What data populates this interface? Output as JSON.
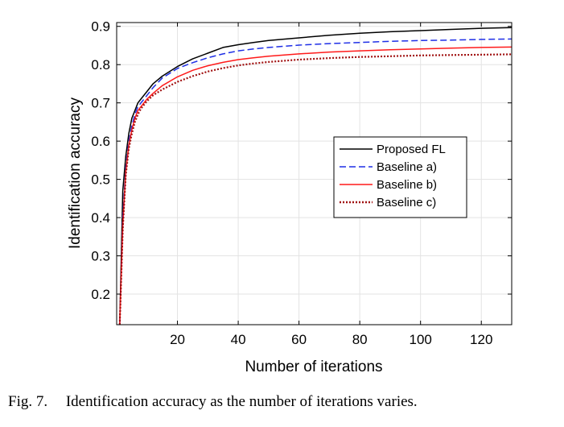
{
  "caption": {
    "label": "Fig. 7.",
    "text": "Identification accuracy as the number of iterations varies."
  },
  "chart_data": {
    "type": "line",
    "xlabel": "Number of iterations",
    "ylabel": "Identification accuracy",
    "xlim": [
      0,
      130
    ],
    "ylim": [
      0.12,
      0.91
    ],
    "xticks": [
      20,
      40,
      60,
      80,
      100,
      120
    ],
    "yticks": [
      0.2,
      0.3,
      0.4,
      0.5,
      0.6,
      0.7,
      0.8,
      0.9
    ],
    "grid": true,
    "legend_position": "center-right",
    "series": [
      {
        "name": "Proposed FL",
        "color": "#000000",
        "style": "solid",
        "x": [
          1,
          2,
          3,
          4,
          5,
          6,
          7,
          8,
          10,
          12,
          15,
          20,
          25,
          30,
          35,
          40,
          45,
          50,
          60,
          70,
          80,
          90,
          100,
          110,
          120,
          130
        ],
        "y": [
          0.12,
          0.47,
          0.56,
          0.62,
          0.66,
          0.68,
          0.7,
          0.71,
          0.73,
          0.75,
          0.77,
          0.795,
          0.815,
          0.83,
          0.845,
          0.852,
          0.858,
          0.863,
          0.87,
          0.877,
          0.882,
          0.886,
          0.889,
          0.892,
          0.895,
          0.897
        ]
      },
      {
        "name": "Baseline a)",
        "color": "#1f2fe6",
        "style": "dashed",
        "x": [
          1,
          2,
          3,
          4,
          5,
          6,
          7,
          8,
          10,
          12,
          15,
          20,
          25,
          30,
          35,
          40,
          45,
          50,
          60,
          70,
          80,
          90,
          100,
          110,
          120,
          130
        ],
        "y": [
          0.12,
          0.4,
          0.53,
          0.6,
          0.64,
          0.67,
          0.69,
          0.7,
          0.72,
          0.74,
          0.765,
          0.79,
          0.805,
          0.818,
          0.828,
          0.836,
          0.841,
          0.845,
          0.851,
          0.855,
          0.858,
          0.861,
          0.863,
          0.864,
          0.866,
          0.867
        ]
      },
      {
        "name": "Baseline b)",
        "color": "#ff1a1a",
        "style": "solid",
        "x": [
          1,
          2,
          3,
          4,
          5,
          6,
          7,
          8,
          10,
          12,
          15,
          20,
          25,
          30,
          35,
          40,
          45,
          50,
          60,
          70,
          80,
          90,
          100,
          110,
          120,
          130
        ],
        "y": [
          0.12,
          0.38,
          0.52,
          0.59,
          0.63,
          0.66,
          0.68,
          0.69,
          0.71,
          0.725,
          0.745,
          0.768,
          0.785,
          0.797,
          0.806,
          0.813,
          0.818,
          0.822,
          0.828,
          0.833,
          0.836,
          0.839,
          0.841,
          0.843,
          0.845,
          0.846
        ]
      },
      {
        "name": "Baseline c)",
        "color": "#a01010",
        "style": "dotted",
        "x": [
          1,
          2,
          3,
          4,
          5,
          6,
          7,
          8,
          10,
          12,
          15,
          20,
          25,
          30,
          35,
          40,
          45,
          50,
          60,
          70,
          80,
          90,
          100,
          110,
          120,
          130
        ],
        "y": [
          0.12,
          0.37,
          0.51,
          0.58,
          0.62,
          0.65,
          0.67,
          0.685,
          0.705,
          0.72,
          0.735,
          0.755,
          0.77,
          0.782,
          0.791,
          0.798,
          0.803,
          0.807,
          0.813,
          0.817,
          0.82,
          0.822,
          0.824,
          0.825,
          0.826,
          0.827
        ]
      }
    ]
  }
}
